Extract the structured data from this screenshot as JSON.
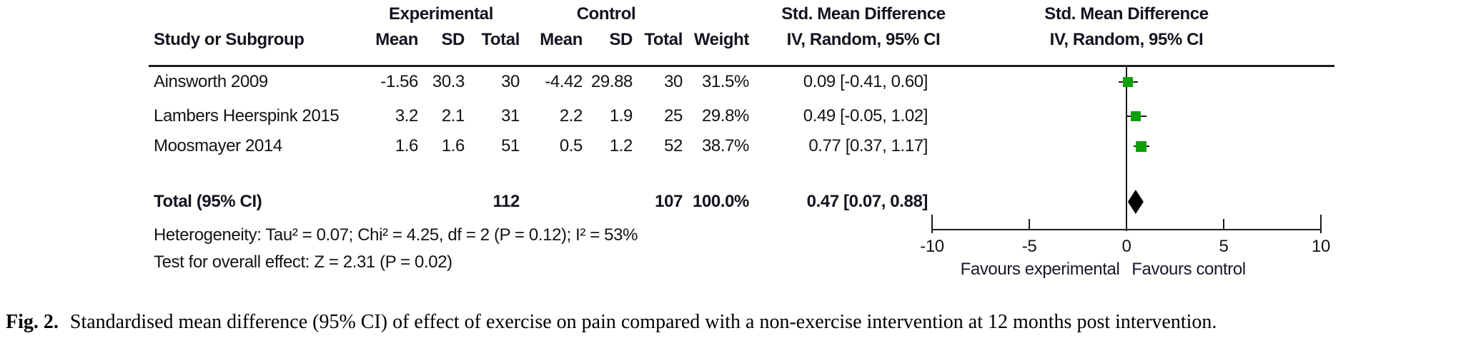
{
  "figure_caption": {
    "label": "Fig. 2.",
    "text": "Standardised mean difference (95% CI) of effect of exercise on pain compared with a non-exercise intervention at 12 months post intervention."
  },
  "table": {
    "group_headers": {
      "experimental": "Experimental",
      "control": "Control",
      "smd_left": "Std. Mean Difference",
      "smd_right": "Std. Mean Difference"
    },
    "column_headers": {
      "study": "Study or Subgroup",
      "mean_exp": "Mean",
      "sd_exp": "SD",
      "total_exp": "Total",
      "mean_ctrl": "Mean",
      "sd_ctrl": "SD",
      "total_ctrl": "Total",
      "weight": "Weight",
      "ci_left": "IV, Random, 95% CI",
      "ci_right": "IV, Random, 95% CI"
    },
    "total_label": "Total (95% CI)",
    "heterogeneity": "Heterogeneity: Tau² = 0.07; Chi² = 4.25, df = 2 (P = 0.12); I² = 53%",
    "overall_effect": "Test for overall effect: Z = 2.31 (P = 0.02)"
  },
  "plot": {
    "favours_left": "Favours experimental",
    "favours_right": "Favours control",
    "marker_color": "#0ca10c",
    "diamond_color": "#000000",
    "x_ticks": [
      {
        "value": -10,
        "label": "-10"
      },
      {
        "value": -5,
        "label": "-5"
      },
      {
        "value": 0,
        "label": "0"
      },
      {
        "value": 5,
        "label": "5"
      },
      {
        "value": 10,
        "label": "10"
      }
    ]
  },
  "chart_data": {
    "type": "scatter",
    "variant": "forest-plot",
    "effect_measure": "Std. Mean Difference, IV, Random, 95% CI",
    "xlim": [
      -10,
      10
    ],
    "studies": [
      {
        "name": "Ainsworth 2009",
        "exp_mean": "-1.56",
        "exp_sd": "30.3",
        "exp_total": "30",
        "ctrl_mean": "-4.42",
        "ctrl_sd": "29.88",
        "ctrl_total": "30",
        "weight": "31.5%",
        "weight_pct": 31.5,
        "smd": 0.09,
        "ci_low": -0.41,
        "ci_high": 0.6,
        "ci_label": "0.09 [-0.41, 0.60]"
      },
      {
        "name": "Lambers Heerspink 2015",
        "exp_mean": "3.2",
        "exp_sd": "2.1",
        "exp_total": "31",
        "ctrl_mean": "2.2",
        "ctrl_sd": "1.9",
        "ctrl_total": "25",
        "weight": "29.8%",
        "weight_pct": 29.8,
        "smd": 0.49,
        "ci_low": -0.05,
        "ci_high": 1.02,
        "ci_label": "0.49 [-0.05, 1.02]"
      },
      {
        "name": "Moosmayer 2014",
        "exp_mean": "1.6",
        "exp_sd": "1.6",
        "exp_total": "51",
        "ctrl_mean": "0.5",
        "ctrl_sd": "1.2",
        "ctrl_total": "52",
        "weight": "38.7%",
        "weight_pct": 38.7,
        "smd": 0.77,
        "ci_low": 0.37,
        "ci_high": 1.17,
        "ci_label": "0.77 [0.37, 1.17]"
      }
    ],
    "total": {
      "exp_total": "112",
      "ctrl_total": "107",
      "weight": "100.0%",
      "smd": 0.47,
      "ci_low": 0.07,
      "ci_high": 0.88,
      "ci_label": "0.47 [0.07, 0.88]"
    },
    "heterogeneity_stats": {
      "tau2": 0.07,
      "chi2": 4.25,
      "df": 2,
      "p": 0.12,
      "i2": "53%"
    },
    "overall_effect_stats": {
      "z": 2.31,
      "p": 0.02
    }
  }
}
